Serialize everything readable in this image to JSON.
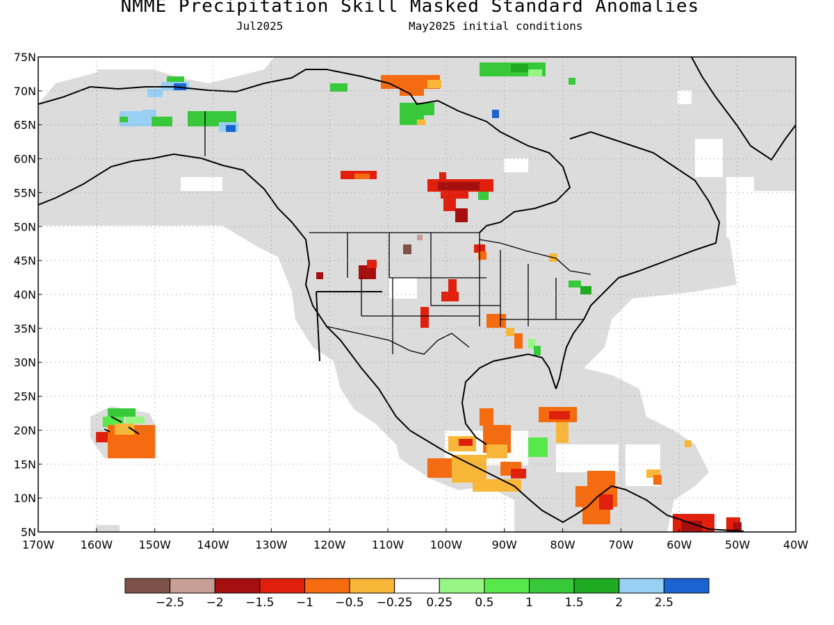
{
  "title": "NMME Precipitation Skill Masked Standard Anomalies",
  "subtitle_left": "Jul2025",
  "subtitle_right": "May2025 initial conditions",
  "map": {
    "lat_labels": [
      "75N",
      "70N",
      "65N",
      "60N",
      "55N",
      "50N",
      "45N",
      "40N",
      "35N",
      "30N",
      "25N",
      "20N",
      "15N",
      "10N",
      "5N"
    ],
    "lon_labels": [
      "170W",
      "160W",
      "150W",
      "140W",
      "130W",
      "120W",
      "110W",
      "100W",
      "90W",
      "80W",
      "70W",
      "60W",
      "50W",
      "40W"
    ],
    "lat_range": [
      5,
      75
    ],
    "lon_range": [
      -170,
      -40
    ],
    "grid": true,
    "colors": {
      "masked_gray": "#dcdcdc",
      "coast": "#000000"
    }
  },
  "legend": {
    "colors": [
      "#7d5248",
      "#c89f96",
      "#a50f0f",
      "#e0200c",
      "#f46b10",
      "#f9b73a",
      "#ffffff",
      "#98f684",
      "#57e84b",
      "#38c93a",
      "#1eab22",
      "#98d0f4",
      "#1a64d2"
    ],
    "labels": [
      "-2.5",
      "-2",
      "-1.5",
      "-1",
      "-0.5",
      "-0.25",
      "0.25",
      "0.5",
      "1",
      "1.5",
      "2",
      "2.5"
    ]
  }
}
